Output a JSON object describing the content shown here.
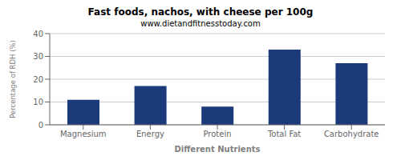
{
  "chart_data": {
    "type": "bar",
    "title": "Fast foods, nachos, with cheese per 100g",
    "subtitle": "www.dietandfitnesstoday.com",
    "xlabel": "Different Nutrients",
    "ylabel": "Percentage of RDH (%)",
    "categories": [
      "Magnesium",
      "Energy",
      "Protein",
      "Total Fat",
      "Carbohydrate"
    ],
    "values": [
      11,
      17,
      8,
      33,
      27
    ],
    "color": "#1a3a7a",
    "ylim": [
      0,
      40
    ],
    "yticks": [
      0,
      10,
      20,
      30,
      40
    ],
    "grid": true
  }
}
